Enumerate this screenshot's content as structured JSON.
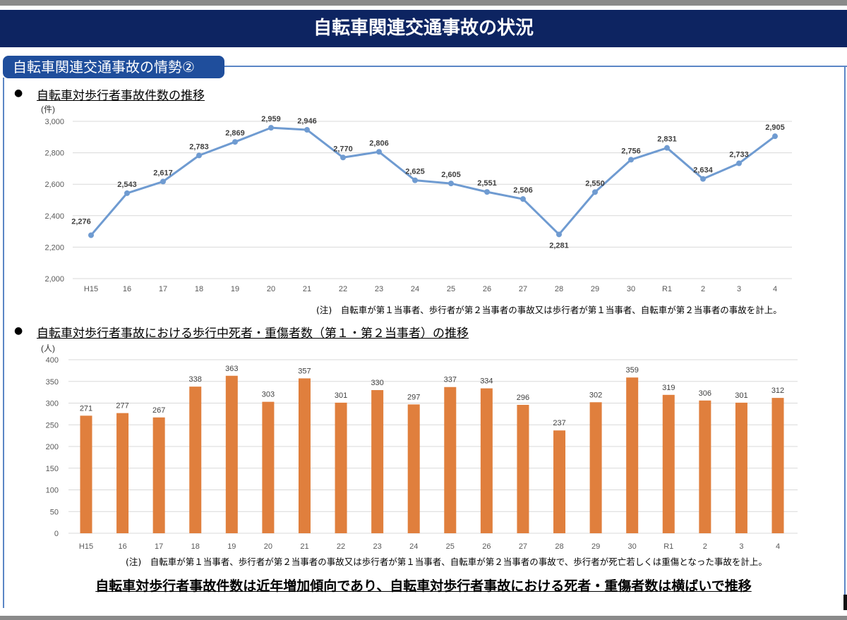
{
  "page": {
    "title": "自転車関連交通事故の状況",
    "section_label": "自転車関連交通事故の情勢②",
    "bullet_symbol": "●",
    "conclusion": "自転車対歩行者事故件数は近年増加傾向であり、自転車対歩行者事故における死者・重傷者数は横ばいで推移"
  },
  "colors": {
    "title_band": "#0d2461",
    "section_tab": "#1f4e9c",
    "line_series": "#6f9bd1",
    "bar_series": "#e07f3d"
  },
  "chart_data": [
    {
      "type": "line",
      "heading": "自転車対歩行者事故件数の推移",
      "unit_label": "(件)",
      "categories": [
        "H15",
        "16",
        "17",
        "18",
        "19",
        "20",
        "21",
        "22",
        "23",
        "24",
        "25",
        "26",
        "27",
        "28",
        "29",
        "30",
        "R1",
        "2",
        "3",
        "4"
      ],
      "values": [
        2276,
        2543,
        2617,
        2783,
        2869,
        2959,
        2946,
        2770,
        2806,
        2625,
        2605,
        2551,
        2506,
        2281,
        2550,
        2756,
        2831,
        2634,
        2733,
        2905
      ],
      "value_labels": [
        "2,276",
        "2,543",
        "2,617",
        "2,783",
        "2,869",
        "2,959",
        "2,946",
        "2,770",
        "2,806",
        "2,625",
        "2,605",
        "2,551",
        "2,506",
        "2,281",
        "2,550",
        "2,756",
        "2,831",
        "2,634",
        "2,733",
        "2,905"
      ],
      "ylim": [
        2000,
        3000
      ],
      "yticks": [
        2000,
        2200,
        2400,
        2600,
        2800,
        3000
      ],
      "ytick_labels": [
        "2,000",
        "2,200",
        "2,400",
        "2,600",
        "2,800",
        "3,000"
      ],
      "grid": true,
      "note": "(注)　自転車が第１当事者、歩行者が第２当事者の事故又は歩行者が第１当事者、自転車が第２当事者の事故を計上。"
    },
    {
      "type": "bar",
      "heading": "自転車対歩行者事故における歩行中死者・重傷者数（第１・第２当事者）の推移",
      "unit_label": "(人)",
      "categories": [
        "H15",
        "16",
        "17",
        "18",
        "19",
        "20",
        "21",
        "22",
        "23",
        "24",
        "25",
        "26",
        "27",
        "28",
        "29",
        "30",
        "R1",
        "2",
        "3",
        "4"
      ],
      "values": [
        271,
        277,
        267,
        338,
        363,
        303,
        357,
        301,
        330,
        297,
        337,
        334,
        296,
        237,
        302,
        359,
        319,
        306,
        301,
        312
      ],
      "ylim": [
        0,
        400
      ],
      "yticks": [
        0,
        50,
        100,
        150,
        200,
        250,
        300,
        350,
        400
      ],
      "grid": true,
      "note": "(注)　自転車が第１当事者、歩行者が第２当事者の事故又は歩行者が第１当事者、自転車が第２当事者の事故で、歩行者が死亡若しくは重傷となった事故を計上。"
    }
  ]
}
